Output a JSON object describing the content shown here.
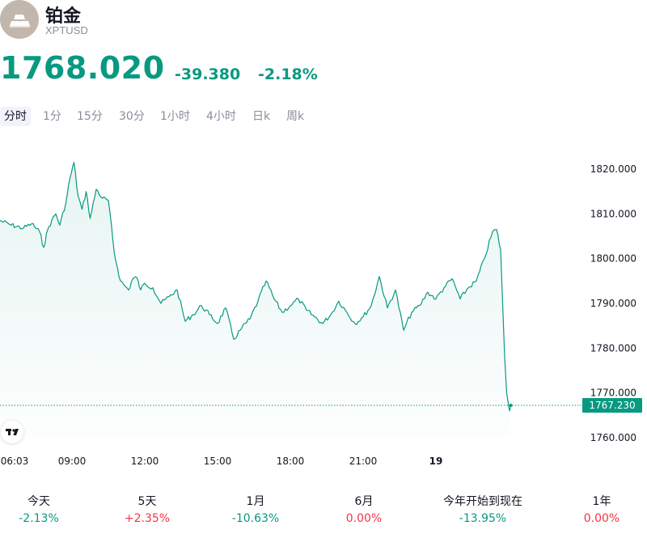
{
  "header": {
    "title": "铂金",
    "symbol": "XPTUSD"
  },
  "quote": {
    "price": "1768.020",
    "change": "-39.380",
    "change_pct": "-2.18%"
  },
  "tabs": [
    {
      "label": "分时",
      "active": true
    },
    {
      "label": "1分",
      "active": false
    },
    {
      "label": "15分",
      "active": false
    },
    {
      "label": "30分",
      "active": false
    },
    {
      "label": "1小时",
      "active": false
    },
    {
      "label": "4小时",
      "active": false
    },
    {
      "label": "日k",
      "active": false
    },
    {
      "label": "周k",
      "active": false
    }
  ],
  "chart_data": {
    "type": "area",
    "x_ticks": [
      "06:03",
      "09:00",
      "12:00",
      "15:00",
      "18:00",
      "21:00",
      "19"
    ],
    "x_tick_bold": [
      false,
      false,
      false,
      false,
      false,
      false,
      true
    ],
    "y_ticks": [
      "1820.000",
      "1810.000",
      "1800.000",
      "1790.000",
      "1780.000",
      "1770.000",
      "1760.000"
    ],
    "ylim": [
      1757,
      1825
    ],
    "last_value": "1767.230",
    "series": [
      {
        "x": [
          "06:03",
          "06:30",
          "07:00",
          "07:20",
          "07:40",
          "07:50",
          "08:00",
          "08:10",
          "08:20",
          "08:30",
          "08:45",
          "08:55",
          "09:05",
          "09:15",
          "09:25",
          "09:35",
          "09:45",
          "10:00",
          "10:15",
          "10:30",
          "10:45",
          "11:00",
          "11:10",
          "11:20",
          "11:30",
          "11:40",
          "11:50",
          "12:00",
          "12:20",
          "12:40",
          "13:00",
          "13:20",
          "13:40",
          "14:00",
          "14:20",
          "14:40",
          "15:00",
          "15:20",
          "15:40",
          "16:00",
          "16:20",
          "16:40",
          "17:00",
          "17:20",
          "17:40",
          "18:00",
          "18:20",
          "18:40",
          "19:00",
          "19:20",
          "19:40",
          "20:00",
          "20:20",
          "20:40",
          "21:00",
          "21:20",
          "21:40",
          "22:00",
          "22:20",
          "22:40",
          "23:00",
          "23:20",
          "23:40",
          "00:00",
          "00:20",
          "00:40",
          "01:00",
          "01:20",
          "01:40",
          "02:00",
          "02:20",
          "02:30",
          "02:40",
          "02:45",
          "02:50",
          "02:55",
          "03:00",
          "03:02",
          "03:05"
        ],
        "values": [
          1808.5,
          1807.5,
          1806.8,
          1807.8,
          1806.0,
          1802.5,
          1806.5,
          1808.5,
          1810.0,
          1807.5,
          1812.5,
          1818.0,
          1821.5,
          1814.0,
          1811.0,
          1815.0,
          1809.0,
          1815.5,
          1813.5,
          1813.0,
          1801.0,
          1795.0,
          1794.0,
          1793.0,
          1795.5,
          1795.8,
          1793.0,
          1794.5,
          1793.5,
          1790.0,
          1791.5,
          1793.0,
          1786.0,
          1787.5,
          1789.5,
          1787.5,
          1785.5,
          1789.0,
          1782.0,
          1784.5,
          1786.5,
          1790.5,
          1795.0,
          1791.0,
          1788.0,
          1789.5,
          1791.0,
          1788.5,
          1787.0,
          1785.5,
          1787.5,
          1790.5,
          1788.0,
          1785.5,
          1787.0,
          1789.5,
          1796.0,
          1789.0,
          1793.0,
          1784.0,
          1788.0,
          1789.5,
          1792.5,
          1791.0,
          1793.5,
          1795.5,
          1791.0,
          1793.5,
          1795.0,
          1800.0,
          1806.0,
          1806.5,
          1802.0,
          1790.0,
          1778.0,
          1770.0,
          1767.0,
          1766.0,
          1767.2
        ]
      }
    ]
  },
  "performance": [
    {
      "label": "今天",
      "value": "-2.13%",
      "color": "#089981"
    },
    {
      "label": "5天",
      "value": "+2.35%",
      "color": "#f23645"
    },
    {
      "label": "1月",
      "value": "-10.63%",
      "color": "#089981"
    },
    {
      "label": "6月",
      "value": "0.00%",
      "color": "#f23645"
    },
    {
      "label": "今年开始到现在",
      "value": "-13.95%",
      "color": "#089981"
    },
    {
      "label": "1年",
      "value": "0.00%",
      "color": "#f23645"
    }
  ],
  "colors": {
    "accent": "#089981",
    "negative": "#f23645",
    "muted": "#8a8e99",
    "logo_bg": "#c2b7ac"
  },
  "icons": {
    "logo": "gold-bars-icon",
    "watermark": "tradingview-logo-icon"
  }
}
